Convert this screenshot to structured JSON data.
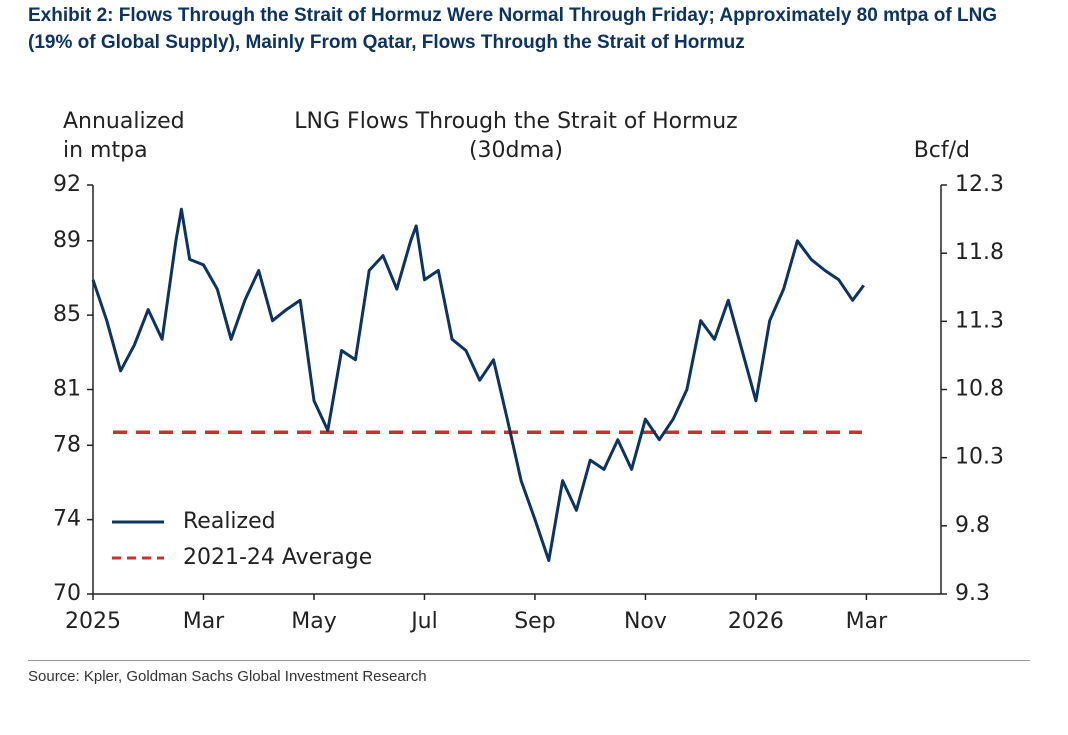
{
  "heading": "Exhibit 2: Flows Through the Strait of Hormuz Were Normal Through Friday; Approximately 80 mtpa of LNG (19% of Global Supply), Mainly From Qatar, Flows Through the Strait of Hormuz",
  "source": "Source: Kpler, Goldman Sachs Global Investment Research",
  "chart_data": {
    "type": "line",
    "title": "LNG Flows Through the Strait of Hormuz",
    "subtitle": "(30dma)",
    "ylabel": [
      "Annualized",
      "in mtpa"
    ],
    "y2label": "Bcf/d",
    "x": [
      0,
      0.25,
      0.5,
      0.75,
      1,
      1.25,
      1.5,
      1.6,
      1.75,
      2,
      2.25,
      2.5,
      2.75,
      3,
      3.25,
      3.5,
      3.75,
      4,
      4.25,
      4.5,
      4.75,
      5,
      5.25,
      5.5,
      5.75,
      5.85,
      6,
      6.25,
      6.5,
      6.75,
      7,
      7.25,
      7.5,
      7.75,
      8,
      8.25,
      8.5,
      8.75,
      9,
      9.25,
      9.5,
      9.75,
      10,
      10.25,
      10.5,
      10.75,
      11,
      11.25,
      11.5,
      11.75,
      12,
      12.25,
      12.5,
      12.75,
      13,
      13.25,
      13.5,
      13.75,
      13.95
    ],
    "series": [
      {
        "name": "Realized",
        "color": "#0d3461",
        "values": [
          86.9,
          84.7,
          82.0,
          83.4,
          85.3,
          83.7,
          89.0,
          90.7,
          88.0,
          87.7,
          86.4,
          83.7,
          85.8,
          87.4,
          84.7,
          85.3,
          85.8,
          80.4,
          78.8,
          83.1,
          82.6,
          87.4,
          88.2,
          86.4,
          89.0,
          89.8,
          86.9,
          87.4,
          83.7,
          83.1,
          81.5,
          82.6,
          79.4,
          76.1,
          74.0,
          71.8,
          76.1,
          74.5,
          77.2,
          76.7,
          78.3,
          76.7,
          79.4,
          78.3,
          79.4,
          81.0,
          84.7,
          83.7,
          85.8,
          83.1,
          80.4,
          84.7,
          86.4,
          89.0,
          88.0,
          87.4,
          86.9,
          85.8,
          86.6
        ]
      }
    ],
    "reference_lines": [
      {
        "name": "2021-24 Average",
        "color": "#c8312f",
        "value": 78.7,
        "style": "dashed"
      }
    ],
    "xlim": [
      0,
      15.35
    ],
    "xticks": [
      {
        "value": 0,
        "label": "2025"
      },
      {
        "value": 2,
        "label": "Mar"
      },
      {
        "value": 4,
        "label": "May"
      },
      {
        "value": 6,
        "label": "Jul"
      },
      {
        "value": 8,
        "label": "Sep"
      },
      {
        "value": 10,
        "label": "Nov"
      },
      {
        "value": 12,
        "label": "2026"
      },
      {
        "value": 14,
        "label": "Mar"
      }
    ],
    "ylim": [
      70,
      92
    ],
    "yticks": [
      70,
      74,
      78,
      81,
      85,
      89,
      92
    ],
    "y2lim": [
      9.3,
      12.3
    ],
    "y2ticks": [
      9.3,
      9.8,
      10.3,
      10.8,
      11.3,
      11.8,
      12.3
    ],
    "legend": "lower left"
  }
}
